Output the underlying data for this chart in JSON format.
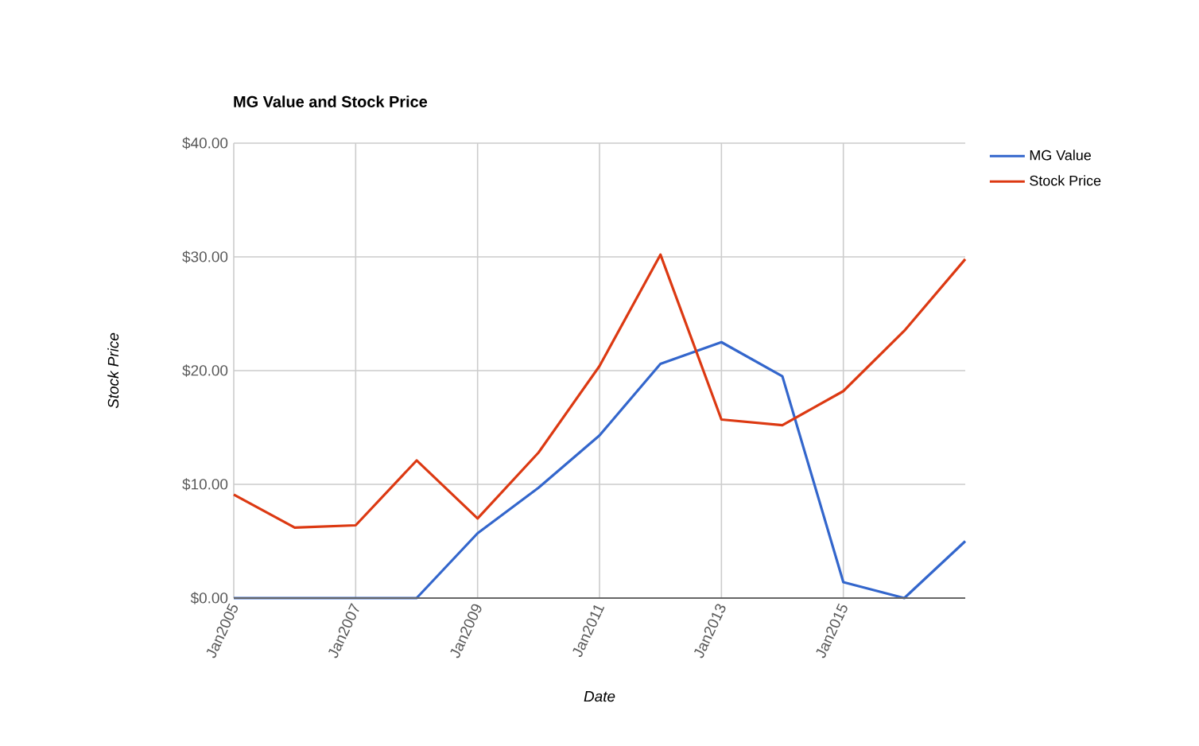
{
  "chart_data": {
    "type": "line",
    "title": "MG Value and Stock Price",
    "xlabel": "Date",
    "ylabel": "Stock Price",
    "x": [
      "2005",
      "2006",
      "2007",
      "2008",
      "2009",
      "2010",
      "2011",
      "2012",
      "2013",
      "2014",
      "2015",
      "2016",
      "2017"
    ],
    "series": [
      {
        "name": "MG Value",
        "color": "#3366cc",
        "values": [
          0,
          0,
          0,
          0,
          5.7,
          9.7,
          14.3,
          20.6,
          22.5,
          19.5,
          1.4,
          0,
          5.0
        ]
      },
      {
        "name": "Stock Price",
        "color": "#dc3912",
        "values": [
          9.1,
          6.2,
          6.4,
          12.1,
          7.0,
          12.8,
          20.4,
          30.2,
          15.7,
          15.2,
          18.2,
          23.5,
          29.8
        ]
      }
    ],
    "xlim": [
      "2005",
      "2017"
    ],
    "xticks": [
      {
        "value": "2005-01",
        "label": "Jan2005"
      },
      {
        "value": "2007-01",
        "label": "Jan2007"
      },
      {
        "value": "2009-01",
        "label": "Jan2009"
      },
      {
        "value": "2011-01",
        "label": "Jan2011"
      },
      {
        "value": "2013-01",
        "label": "Jan2013"
      },
      {
        "value": "2015-01",
        "label": "Jan2015"
      }
    ],
    "ylim": [
      0,
      40
    ],
    "yticks": [
      {
        "value": 0,
        "label": "$0.00"
      },
      {
        "value": 10,
        "label": "$10.00"
      },
      {
        "value": 20,
        "label": "$20.00"
      },
      {
        "value": 30,
        "label": "$30.00"
      },
      {
        "value": 40,
        "label": "$40.00"
      }
    ],
    "grid": true,
    "legend": "top right",
    "marker": "none",
    "line_style": "solid"
  }
}
